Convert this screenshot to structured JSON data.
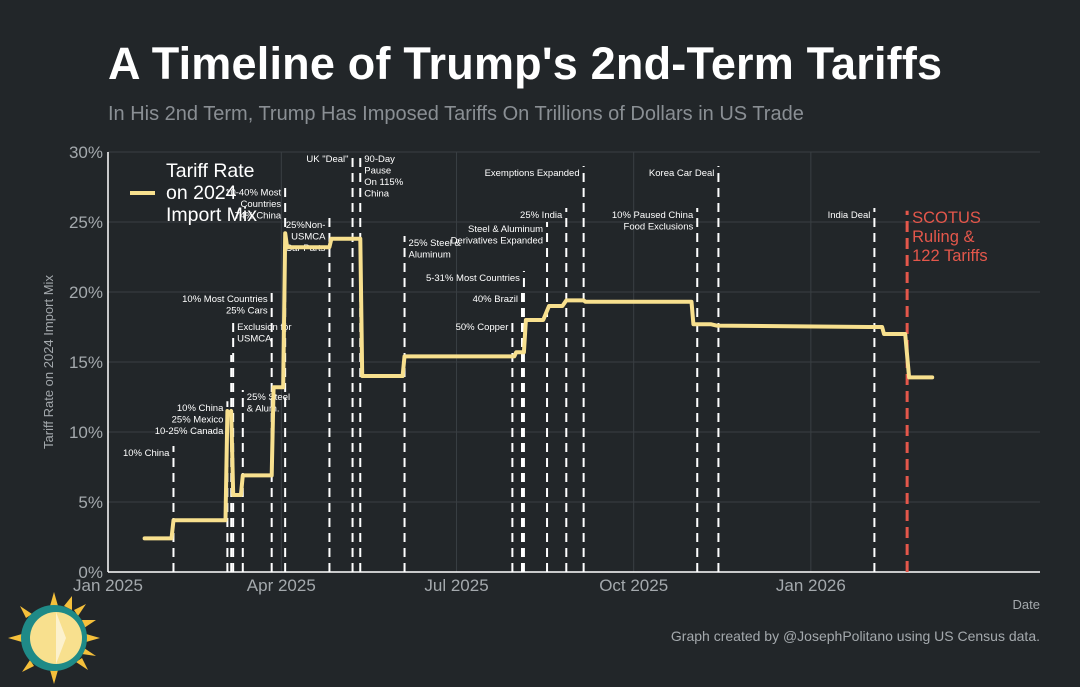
{
  "title": "A Timeline of Trump's 2nd-Term Tariffs",
  "subtitle": "In His 2nd Term, Trump Has Imposed Tariffs On Trillions of Dollars in US Trade",
  "credit": "Graph created by @JosephPolitano using US Census data.",
  "colors": {
    "background": "#222629",
    "line": "#f8e08e",
    "grid": "#3a3f43",
    "event_line": "#ffffff",
    "scotus_line": "#e4574b",
    "text": "#a4a9ad"
  },
  "chart_data": {
    "type": "line",
    "xlabel": "Date",
    "ylabel": "Tariff Rate on 2024 Import Mix",
    "ylim": [
      0,
      30
    ],
    "xlim": [
      "2025-01-01",
      "2026-04-30"
    ],
    "y_ticks": [
      "0%",
      "5%",
      "10%",
      "15%",
      "20%",
      "25%",
      "30%"
    ],
    "x_ticks": [
      {
        "date": "2025-01-01",
        "label": "Jan 2025"
      },
      {
        "date": "2025-04-01",
        "label": "Apr 2025"
      },
      {
        "date": "2025-07-01",
        "label": "Jul 2025"
      },
      {
        "date": "2025-10-01",
        "label": "Oct 2025"
      },
      {
        "date": "2026-01-01",
        "label": "Jan 2026"
      }
    ],
    "legend": {
      "placement": "top-left",
      "label_lines": [
        "Tariff Rate",
        "on 2024",
        "Import Mix"
      ]
    },
    "grid": true,
    "series": [
      {
        "name": "Tariff Rate on 2024 Import Mix",
        "points": [
          [
            "2025-01-20",
            2.4
          ],
          [
            "2025-02-03",
            2.4
          ],
          [
            "2025-02-04",
            3.7
          ],
          [
            "2025-03-03",
            3.7
          ],
          [
            "2025-03-04",
            11.5
          ],
          [
            "2025-03-05",
            11.3
          ],
          [
            "2025-03-06",
            11.5
          ],
          [
            "2025-03-07",
            5.5
          ],
          [
            "2025-03-11",
            5.5
          ],
          [
            "2025-03-12",
            6.9
          ],
          [
            "2025-03-27",
            6.9
          ],
          [
            "2025-03-28",
            13.2
          ],
          [
            "2025-04-02",
            13.2
          ],
          [
            "2025-04-03",
            24.2
          ],
          [
            "2025-04-04",
            23.2
          ],
          [
            "2025-04-26",
            23.2
          ],
          [
            "2025-04-27",
            23.8
          ],
          [
            "2025-05-02",
            23.8
          ],
          [
            "2025-05-03",
            23.8
          ],
          [
            "2025-05-12",
            23.8
          ],
          [
            "2025-05-13",
            14.0
          ],
          [
            "2025-06-03",
            14.0
          ],
          [
            "2025-06-04",
            15.4
          ],
          [
            "2025-07-31",
            15.4
          ],
          [
            "2025-08-01",
            15.7
          ],
          [
            "2025-08-05",
            15.7
          ],
          [
            "2025-08-06",
            18.0
          ],
          [
            "2025-08-15",
            18.0
          ],
          [
            "2025-08-18",
            19.0
          ],
          [
            "2025-08-25",
            19.0
          ],
          [
            "2025-08-27",
            19.4
          ],
          [
            "2025-09-05",
            19.4
          ],
          [
            "2025-09-06",
            19.3
          ],
          [
            "2025-10-31",
            19.3
          ],
          [
            "2025-11-01",
            17.7
          ],
          [
            "2025-11-10",
            17.7
          ],
          [
            "2025-11-13",
            17.6
          ],
          [
            "2026-01-31",
            17.5
          ],
          [
            "2026-02-07",
            17.5
          ],
          [
            "2026-02-08",
            17.0
          ],
          [
            "2026-02-19",
            17.0
          ],
          [
            "2026-02-21",
            13.9
          ],
          [
            "2026-03-05",
            13.9
          ]
        ]
      }
    ],
    "events": [
      {
        "date": "2025-02-04",
        "top": 9,
        "label_lines": [
          "10% China"
        ],
        "anchor": "end"
      },
      {
        "date": "2025-03-04",
        "top": 12.2,
        "label_lines": [
          "10% China",
          "25% Mexico",
          "10-25% Canada"
        ],
        "anchor": "end"
      },
      {
        "date": "2025-03-06",
        "top": 15.5,
        "label_lines": [],
        "anchor": "end"
      },
      {
        "date": "2025-03-07",
        "top": 18,
        "label_lines": [
          "Exclusion for",
          "USMCA"
        ],
        "anchor": "start"
      },
      {
        "date": "2025-03-12",
        "top": 13,
        "label_lines": [
          "25% Steel",
          "& Alum."
        ],
        "anchor": "start"
      },
      {
        "date": "2025-03-27",
        "top": 20,
        "label_lines": [
          "10% Most Countries",
          "25% Cars"
        ],
        "anchor": "end"
      },
      {
        "date": "2025-04-03",
        "top": 27.6,
        "label_lines": [
          "10-40% Most",
          "Countries",
          "74% China"
        ],
        "anchor": "end"
      },
      {
        "date": "2025-04-26",
        "top": 25.3,
        "label_lines": [
          "25%Non-",
          "USMCA",
          "Car Parts"
        ],
        "anchor": "end"
      },
      {
        "date": "2025-05-08",
        "top": 30,
        "label_lines": [
          "UK \"Deal\""
        ],
        "anchor": "end"
      },
      {
        "date": "2025-05-12",
        "top": 30,
        "label_lines": [
          "90-Day",
          "Pause",
          "On 115%",
          "China"
        ],
        "anchor": "start"
      },
      {
        "date": "2025-06-04",
        "top": 24,
        "label_lines": [
          "25% Steel &",
          "Aluminum"
        ],
        "anchor": "start"
      },
      {
        "date": "2025-07-30",
        "top": 18,
        "label_lines": [
          "50% Copper"
        ],
        "anchor": "end"
      },
      {
        "date": "2025-08-04",
        "top": 20,
        "label_lines": [
          "40% Brazil"
        ],
        "anchor": "end"
      },
      {
        "date": "2025-08-05",
        "top": 21.5,
        "label_lines": [
          "5-31% Most Countries"
        ],
        "anchor": "end"
      },
      {
        "date": "2025-08-17",
        "top": 25,
        "label_lines": [
          "Steel & Aluminum",
          "Derivatives Expanded"
        ],
        "anchor": "end"
      },
      {
        "date": "2025-08-27",
        "top": 26,
        "label_lines": [
          "25% India"
        ],
        "anchor": "end"
      },
      {
        "date": "2025-09-05",
        "top": 29,
        "label_lines": [
          "Exemptions Expanded"
        ],
        "anchor": "end"
      },
      {
        "date": "2025-11-03",
        "top": 26,
        "label_lines": [
          "10% Paused China",
          "Food Exclusions"
        ],
        "anchor": "end"
      },
      {
        "date": "2025-11-14",
        "top": 29,
        "label_lines": [
          "Korea Car Deal"
        ],
        "anchor": "end"
      },
      {
        "date": "2026-02-03",
        "top": 26,
        "label_lines": [
          "India Deal"
        ],
        "anchor": "end"
      }
    ],
    "scotus_event": {
      "date": "2026-02-20",
      "top": 25.8,
      "label_lines": [
        "SCOTUS",
        "Ruling &",
        "122 Tariffs"
      ]
    }
  }
}
